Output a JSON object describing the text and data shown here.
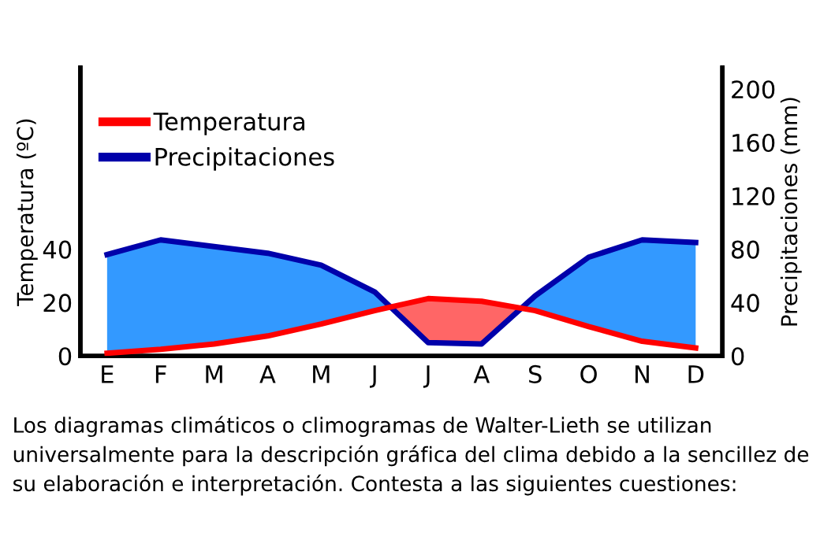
{
  "chart_data": {
    "type": "line",
    "ylabel": "Temperatura (ºC)",
    "y2label": "Precipitaciones (mm)",
    "categories": [
      "E",
      "F",
      "M",
      "A",
      "M",
      "J",
      "J",
      "A",
      "S",
      "O",
      "N",
      "D"
    ],
    "series": [
      {
        "name": "Temperatura",
        "color": "#ff0000",
        "type": "line",
        "values": [
          1,
          2.5,
          4.5,
          7.5,
          12,
          17,
          21.5,
          20.5,
          17,
          11,
          5.5,
          3
        ]
      },
      {
        "name": "Precipitaciones",
        "color": "#0000aa",
        "axis": "y2",
        "values": [
          76,
          87,
          82,
          77,
          68,
          48,
          10,
          9,
          45,
          74,
          87,
          85
        ]
      }
    ],
    "ylim": [
      0,
      108
    ],
    "yticks": [
      0,
      20,
      40
    ],
    "y2lim": [
      0,
      216
    ],
    "y2ticks": [
      0,
      40,
      80,
      120,
      160,
      200
    ],
    "legend": "top left",
    "annotations": [
      "Los diagramas climáticos o climogramas de Walter-Lieth se utilizan universalmente para la descripción gráfica del clima debido a la sencillez de su elaboración e interpretación. Contesta a las siguientes cuestiones:"
    ]
  }
}
